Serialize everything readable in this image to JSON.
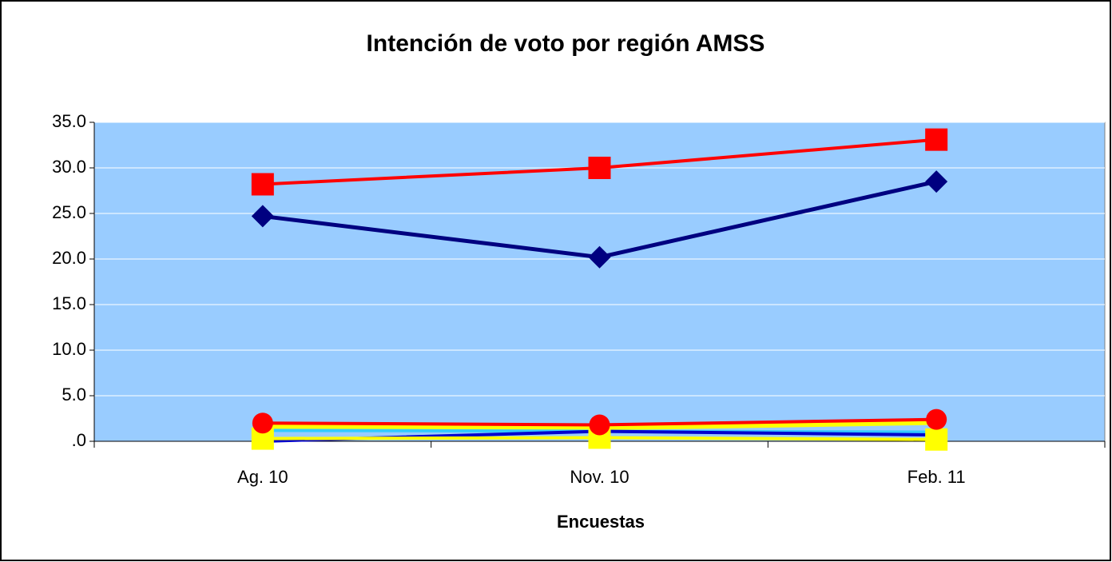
{
  "chart_data": {
    "type": "line",
    "title": "Intención de voto por región AMSS",
    "x_label": "Encuestas",
    "categories": [
      "Ag. 10",
      "Nov. 10",
      "Feb. 11"
    ],
    "series": [
      {
        "color": "#ffff00",
        "marker": "none",
        "width": 7,
        "values": [
          1.6,
          1.5,
          2.1
        ]
      },
      {
        "color": "#33ccff",
        "marker": "none",
        "width": 4,
        "values": [
          1.2,
          1.1,
          1.0
        ]
      },
      {
        "color": "#0000cc",
        "marker": "none",
        "width": 4,
        "values": [
          0.0,
          1.1,
          0.7
        ]
      },
      {
        "color": "#ffff00",
        "marker": "square",
        "width": 4,
        "values": [
          0.3,
          0.4,
          0.2
        ]
      },
      {
        "color": "#ff0000",
        "marker": "circle",
        "width": 4,
        "values": [
          2.0,
          1.8,
          2.4
        ]
      },
      {
        "color": "#000080",
        "marker": "diamond",
        "width": 5,
        "values": [
          24.7,
          20.2,
          28.5
        ]
      },
      {
        "color": "#ff0000",
        "marker": "square",
        "width": 4,
        "values": [
          28.2,
          30.0,
          33.1
        ]
      }
    ],
    "ylim": [
      0,
      35
    ],
    "yticks": [
      {
        "value": 0,
        "label": ".0"
      },
      {
        "value": 5,
        "label": "5.0"
      },
      {
        "value": 10,
        "label": "10.0"
      },
      {
        "value": 15,
        "label": "15.0"
      },
      {
        "value": 20,
        "label": "20.0"
      },
      {
        "value": 25,
        "label": "25.0"
      },
      {
        "value": 30,
        "label": "30.0"
      },
      {
        "value": 35,
        "label": "35.0"
      }
    ],
    "grid": true,
    "plot_background": "#99ccff"
  }
}
